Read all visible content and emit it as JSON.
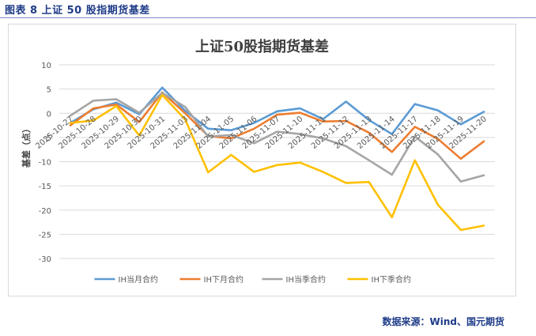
{
  "figure": {
    "label": "图表 8  上证 50 股指期货基差",
    "source": "数据来源：Wind、国元期货"
  },
  "chart_data": {
    "type": "line",
    "title": "上证50股指期货基差",
    "xlabel": "",
    "ylabel": "基差（点）",
    "ylim": [
      -30,
      10
    ],
    "yticks": [
      10,
      5,
      0,
      -5,
      -10,
      -15,
      -20,
      -25,
      -30
    ],
    "grid": true,
    "legend": "bottom",
    "categories": [
      "2025-10-27",
      "2025-10-28",
      "2025-10-29",
      "2025-10-30",
      "2025-10-31",
      "2025-11-03",
      "2025-11-04",
      "2025-11-05",
      "2025-11-06",
      "2025-11-07",
      "2025-11-10",
      "2025-11-11",
      "2025-11-12",
      "2025-11-13",
      "2025-11-14",
      "2025-11-17",
      "2025-11-18",
      "2025-11-19",
      "2025-11-20"
    ],
    "x": [
      "2025-10-27",
      "2025-10-28",
      "2025-10-29",
      "2025-10-30",
      "2025-10-31",
      "2025-11-03",
      "2025-11-04",
      "2025-11-05",
      "2025-11-06",
      "2025-11-07",
      "2025-11-10",
      "2025-11-11",
      "2025-11-12",
      "2025-11-13",
      "2025-11-14",
      "2025-11-17",
      "2025-11-18",
      "2025-11-19",
      "2025-11-20"
    ],
    "series": [
      {
        "name": "IH当月合约",
        "color": "#5b9bd5",
        "values": [
          -2.0,
          0.8,
          2.2,
          -0.2,
          5.3,
          0.5,
          -3.2,
          -3.5,
          -2.0,
          0.4,
          1.0,
          -1.2,
          2.4,
          -1.4,
          -4.3,
          1.9,
          0.6,
          -2.3,
          0.3
        ]
      },
      {
        "name": "IH下月合约",
        "color": "#ed7d31",
        "values": [
          -2.5,
          1.0,
          1.8,
          -1.8,
          4.3,
          0.0,
          -4.7,
          -5.2,
          -3.2,
          -0.3,
          0.1,
          -1.7,
          -1.6,
          -4.0,
          -8.0,
          -2.8,
          -5.3,
          -9.4,
          -5.8
        ]
      },
      {
        "name": "IH当季合约",
        "color": "#a5a5a5",
        "values": [
          -0.5,
          2.6,
          2.9,
          0.1,
          4.2,
          1.3,
          -4.8,
          -4.5,
          -6.2,
          -3.8,
          -4.3,
          -5.2,
          -6.8,
          -9.7,
          -12.7,
          -4.8,
          -8.5,
          -14.1,
          -12.8
        ]
      },
      {
        "name": "IH下季合约",
        "color": "#ffc000",
        "values": [
          -2.0,
          -1.5,
          1.5,
          -4.6,
          3.8,
          -1.3,
          -12.2,
          -8.6,
          -12.1,
          -10.7,
          -10.2,
          -12.1,
          -14.4,
          -14.2,
          -21.5,
          -9.7,
          -18.9,
          -24.1,
          -23.2
        ]
      }
    ]
  }
}
